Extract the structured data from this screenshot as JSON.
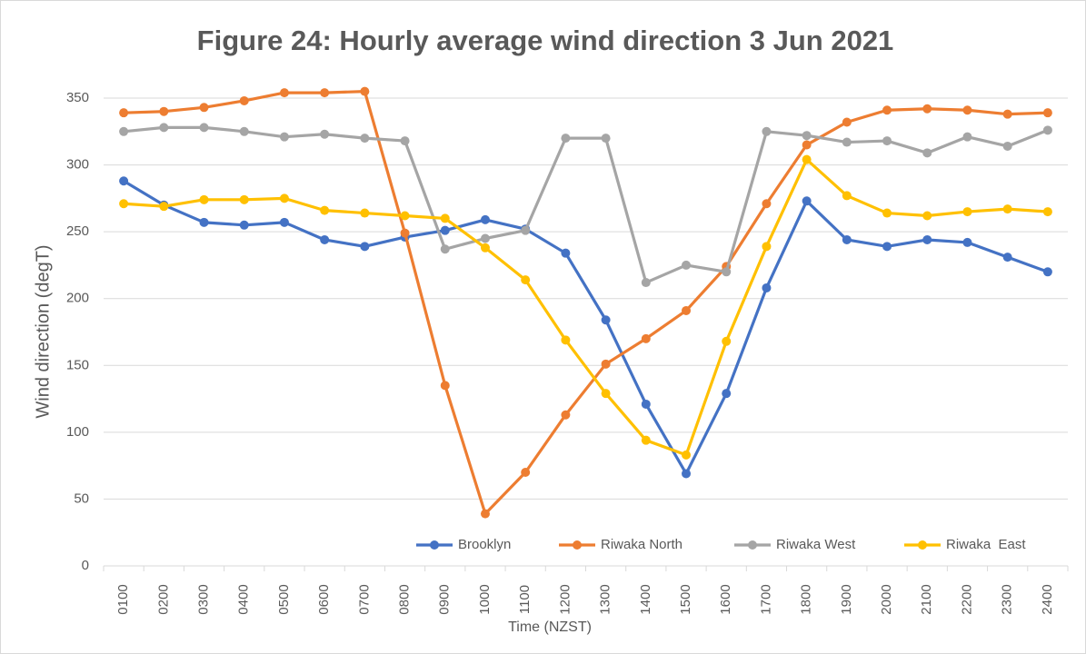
{
  "chart_data": {
    "type": "line",
    "title": "Figure 24: Hourly average wind direction 3 Jun 2021",
    "x_label": "Time (NZST)",
    "y_label": "Wind direction (degT)",
    "categories": [
      "0100",
      "0200",
      "0300",
      "0400",
      "0500",
      "0600",
      "0700",
      "0800",
      "0900",
      "1000",
      "1100",
      "1200",
      "1300",
      "1400",
      "1500",
      "1600",
      "1700",
      "1800",
      "1900",
      "2000",
      "2100",
      "2200",
      "2300",
      "2400"
    ],
    "series": [
      {
        "name": "Brooklyn",
        "color": "#4472C4",
        "values": [
          288,
          270,
          257,
          255,
          257,
          244,
          239,
          246,
          251,
          259,
          252,
          234,
          184,
          121,
          69,
          129,
          208,
          273,
          244,
          239,
          244,
          242,
          231,
          220
        ]
      },
      {
        "name": "Riwaka North",
        "color": "#ED7D31",
        "values": [
          339,
          340,
          343,
          348,
          354,
          354,
          355,
          249,
          135,
          39,
          70,
          113,
          151,
          170,
          191,
          224,
          271,
          315,
          332,
          341,
          342,
          341,
          338,
          339
        ]
      },
      {
        "name": "Riwaka West",
        "color": "#A5A5A5",
        "values": [
          325,
          328,
          328,
          325,
          321,
          323,
          320,
          318,
          237,
          245,
          251,
          320,
          320,
          212,
          225,
          220,
          325,
          322,
          317,
          318,
          309,
          321,
          314,
          326
        ]
      },
      {
        "name": "Riwaka  East",
        "color": "#FFC000",
        "values": [
          271,
          269,
          274,
          274,
          275,
          266,
          264,
          262,
          260,
          238,
          214,
          169,
          129,
          94,
          83,
          168,
          239,
          304,
          277,
          264,
          262,
          265,
          267,
          265
        ]
      }
    ],
    "ylim": [
      0,
      350
    ],
    "yticks": [
      0,
      50,
      100,
      150,
      200,
      250,
      300,
      350
    ],
    "grid": true,
    "legend": "bottom-right"
  }
}
